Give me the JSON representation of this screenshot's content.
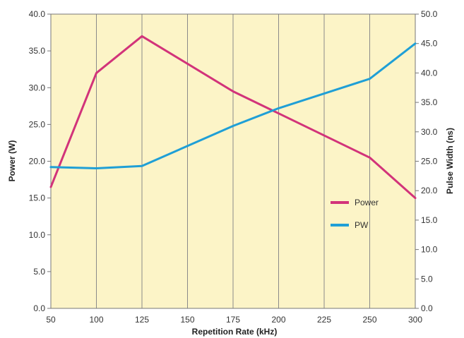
{
  "chart_data": {
    "type": "line",
    "xlabel": "Repetition Rate (kHz)",
    "ylabel_left": "Power (W)",
    "ylabel_right": "Pulse Width (ns)",
    "x": [
      50,
      100,
      125,
      175,
      200,
      250,
      300
    ],
    "xlim": [
      50,
      300
    ],
    "x_ticks": [
      "50",
      "100",
      "125",
      "150",
      "175",
      "200",
      "225",
      "250",
      "300"
    ],
    "ylim_left": [
      0,
      40
    ],
    "y_ticks_left": [
      "0.0",
      "5.0",
      "10.0",
      "15.0",
      "20.0",
      "25.0",
      "30.0",
      "35.0",
      "40.0"
    ],
    "ylim_right": [
      0,
      50
    ],
    "y_ticks_right": [
      "0.0",
      "5.0",
      "10.0",
      "15.0",
      "20.0",
      "25.0",
      "30.0",
      "35.0",
      "40.0",
      "45.0",
      "50.0"
    ],
    "grid": "vertical",
    "legend_position": "right",
    "plot_background": "#fcf4c7",
    "series": [
      {
        "name": "Power",
        "axis": "left",
        "color": "#d2337a",
        "values": [
          16.5,
          32.0,
          37.0,
          29.5,
          26.5,
          20.5,
          15.0
        ]
      },
      {
        "name": "PW",
        "axis": "right",
        "color": "#1f9fd6",
        "values": [
          24.0,
          23.8,
          24.2,
          31.0,
          34.0,
          39.0,
          45.0
        ]
      }
    ]
  }
}
